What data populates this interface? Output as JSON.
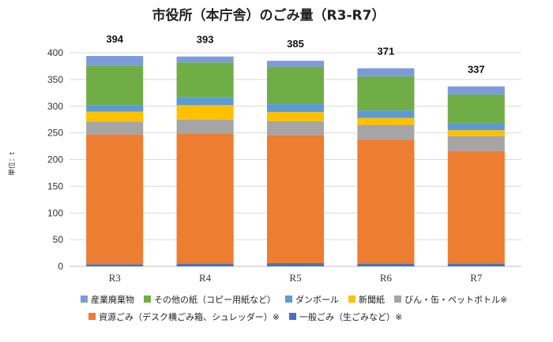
{
  "chart_data": {
    "type": "bar",
    "stacked": true,
    "title": "市役所（本庁舎）のごみ量（R3-R7）",
    "ylabel": "単位：t",
    "xlabel": "",
    "ylim": [
      0,
      400
    ],
    "yticks": [
      0,
      50,
      100,
      150,
      200,
      250,
      300,
      350,
      400
    ],
    "grid": true,
    "legend_position": "bottom",
    "categories": [
      "R3",
      "R4",
      "R5",
      "R6",
      "R7"
    ],
    "totals": [
      394,
      393,
      385,
      371,
      337
    ],
    "series": [
      {
        "name": "一般ごみ（生ごみなど）※",
        "color": "#4472C4",
        "values": [
          4,
          5,
          6,
          5,
          5
        ]
      },
      {
        "name": "資源ごみ（デスク横ごみ箱、シュレッダー）※",
        "color": "#ED7D31",
        "values": [
          243,
          243,
          240,
          232,
          211
        ]
      },
      {
        "name": "びん・缶・ペットボトル※",
        "color": "#A5A5A5",
        "values": [
          24,
          27,
          26,
          28,
          28
        ]
      },
      {
        "name": "新聞紙",
        "color": "#FFC000",
        "values": [
          19,
          27,
          17,
          13,
          11
        ]
      },
      {
        "name": "ダンボール",
        "color": "#5B9BD5",
        "values": [
          12,
          15,
          15,
          14,
          13
        ]
      },
      {
        "name": "その他の紙（コピー用紙など）",
        "color": "#70AD47",
        "values": [
          74,
          65,
          70,
          64,
          54
        ]
      },
      {
        "name": "産業廃棄物",
        "color": "#7B9BDB",
        "values": [
          18,
          11,
          11,
          15,
          15
        ]
      }
    ]
  }
}
